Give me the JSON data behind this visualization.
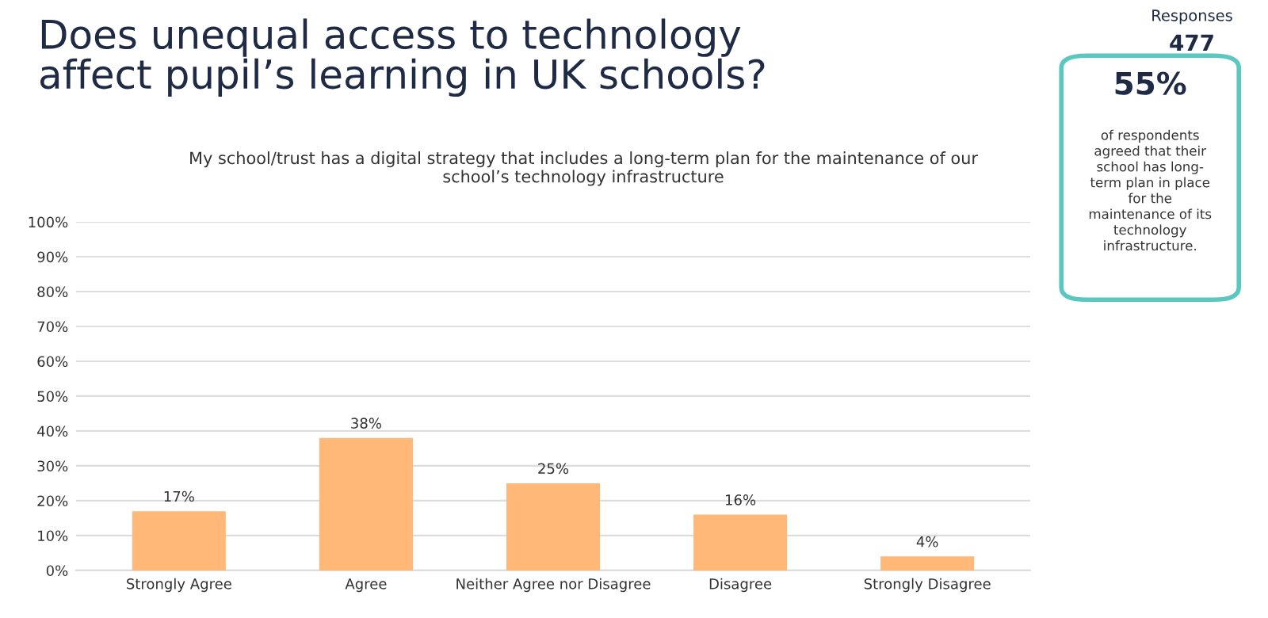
{
  "chart_data": {
    "type": "bar",
    "title": "Does unequal access to technology\naffect pupil’s learning in UK schools?",
    "subtitle": "My school/trust has a digital strategy that includes a long-term plan for the maintenance of our\nschool’s technology infrastructure",
    "categories": [
      "Strongly Agree",
      "Agree",
      "Neither Agree nor Disagree",
      "Disagree",
      "Strongly Disagree"
    ],
    "values": [
      17,
      38,
      25,
      16,
      4
    ],
    "color": "#ffb878",
    "value_labels": [
      "17%",
      "38%",
      "25%",
      "16%",
      "4%"
    ],
    "ylim": [
      0,
      100
    ],
    "yticks": [
      {
        "value": 0,
        "label": "0%"
      },
      {
        "value": 10,
        "label": "10%"
      },
      {
        "value": 20,
        "label": "20%"
      },
      {
        "value": 30,
        "label": "30%"
      },
      {
        "value": 40,
        "label": "40%"
      },
      {
        "value": 50,
        "label": "50%"
      },
      {
        "value": 60,
        "label": "60%"
      },
      {
        "value": 70,
        "label": "70%"
      },
      {
        "value": 80,
        "label": "80%"
      },
      {
        "value": 90,
        "label": "90%"
      },
      {
        "value": 100,
        "label": "100%"
      }
    ],
    "grid": "y",
    "annotations": [
      "Responses",
      "477",
      "55%",
      "of respondents\nagreed that their\nschool has long-\nterm plan in place\nfor the\nmaintenance of its\ntechnology\ninfrastructure."
    ]
  }
}
